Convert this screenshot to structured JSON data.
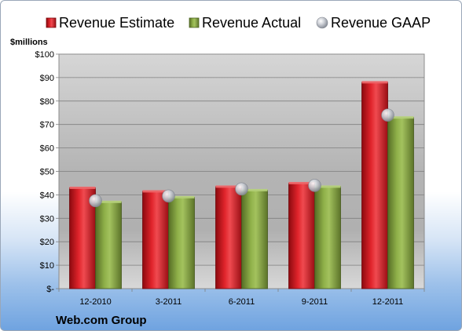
{
  "chart_data": {
    "type": "bar",
    "title": "",
    "ylabel": "$millions",
    "xlabel": "",
    "company": "Web.com Group",
    "categories": [
      "12-2010",
      "3-2011",
      "6-2011",
      "9-2011",
      "12-2011"
    ],
    "series": [
      {
        "name": "Revenue Estimate",
        "values": [
          43,
          41.5,
          43.5,
          45,
          88
        ],
        "color": "#c8161d"
      },
      {
        "name": "Revenue Actual",
        "values": [
          37,
          39,
          42,
          43.5,
          73
        ],
        "color": "#7a9a3d"
      },
      {
        "name": "Revenue GAAP",
        "values": [
          37.5,
          39.5,
          42.5,
          44,
          74
        ],
        "color": "#c9ccd2"
      }
    ],
    "ylim": [
      0,
      100
    ],
    "y_ticks": [
      0,
      10,
      20,
      30,
      40,
      50,
      60,
      70,
      80,
      90,
      100
    ],
    "y_tick_labels": [
      "$-",
      "$10",
      "$20",
      "$30",
      "$40",
      "$50",
      "$60",
      "$70",
      "$80",
      "$90",
      "$100"
    ],
    "grid": true,
    "legend": "top"
  }
}
